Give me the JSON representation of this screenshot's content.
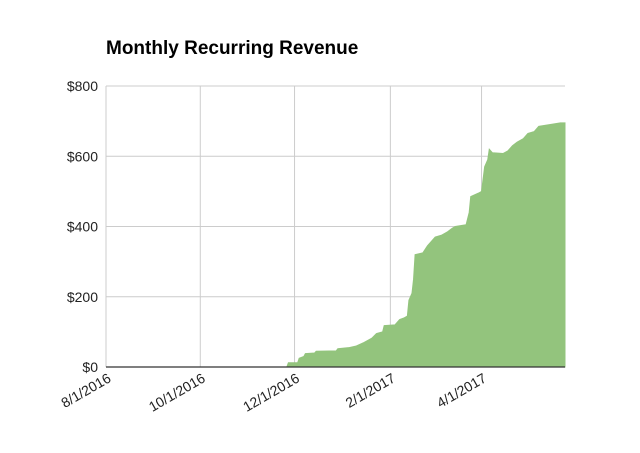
{
  "chart_data": {
    "type": "area",
    "title": "Monthly Recurring Revenue",
    "xlabel": "",
    "ylabel": "",
    "x_start": "2016-08-01",
    "x_end": "2017-05-25",
    "ylim": [
      0,
      800
    ],
    "y_ticks": [
      0,
      200,
      400,
      600,
      800
    ],
    "y_tick_labels": [
      "$0",
      "$200",
      "$400",
      "$600",
      "$800"
    ],
    "x_ticks": [
      "2016-08-01",
      "2016-10-01",
      "2016-12-01",
      "2017-02-01",
      "2017-04-01"
    ],
    "x_tick_labels": [
      "8/1/2016",
      "10/1/2016",
      "12/1/2016",
      "2/1/2017",
      "4/1/2017"
    ],
    "grid": true,
    "legend": "none",
    "colors": {
      "fill": "#93c47d",
      "grid": "#cccccc",
      "axis": "#333333"
    },
    "points": [
      [
        "2016-08-01",
        0
      ],
      [
        "2016-11-26",
        0
      ],
      [
        "2016-11-27",
        12
      ],
      [
        "2016-12-03",
        12
      ],
      [
        "2016-12-04",
        25
      ],
      [
        "2016-12-07",
        30
      ],
      [
        "2016-12-08",
        38
      ],
      [
        "2016-12-14",
        40
      ],
      [
        "2016-12-15",
        45
      ],
      [
        "2016-12-28",
        46
      ],
      [
        "2016-12-29",
        52
      ],
      [
        "2017-01-05",
        55
      ],
      [
        "2017-01-10",
        60
      ],
      [
        "2017-01-15",
        70
      ],
      [
        "2017-01-20",
        82
      ],
      [
        "2017-01-23",
        95
      ],
      [
        "2017-01-27",
        100
      ],
      [
        "2017-01-28",
        118
      ],
      [
        "2017-02-04",
        120
      ],
      [
        "2017-02-07",
        135
      ],
      [
        "2017-02-10",
        140
      ],
      [
        "2017-02-12",
        145
      ],
      [
        "2017-02-13",
        190
      ],
      [
        "2017-02-15",
        210
      ],
      [
        "2017-02-16",
        250
      ],
      [
        "2017-02-17",
        320
      ],
      [
        "2017-02-22",
        325
      ],
      [
        "2017-02-25",
        345
      ],
      [
        "2017-02-28",
        360
      ],
      [
        "2017-03-02",
        370
      ],
      [
        "2017-03-06",
        375
      ],
      [
        "2017-03-10",
        385
      ],
      [
        "2017-03-13",
        395
      ],
      [
        "2017-03-15",
        400
      ],
      [
        "2017-03-22",
        405
      ],
      [
        "2017-03-24",
        440
      ],
      [
        "2017-03-25",
        485
      ],
      [
        "2017-03-30",
        495
      ],
      [
        "2017-04-01",
        500
      ],
      [
        "2017-04-03",
        570
      ],
      [
        "2017-04-05",
        590
      ],
      [
        "2017-04-06",
        620
      ],
      [
        "2017-04-08",
        610
      ],
      [
        "2017-04-15",
        608
      ],
      [
        "2017-04-18",
        615
      ],
      [
        "2017-04-21",
        630
      ],
      [
        "2017-04-24",
        640
      ],
      [
        "2017-04-28",
        650
      ],
      [
        "2017-05-01",
        665
      ],
      [
        "2017-05-05",
        670
      ],
      [
        "2017-05-08",
        685
      ],
      [
        "2017-05-15",
        690
      ],
      [
        "2017-05-22",
        695
      ],
      [
        "2017-05-25",
        695
      ]
    ]
  }
}
